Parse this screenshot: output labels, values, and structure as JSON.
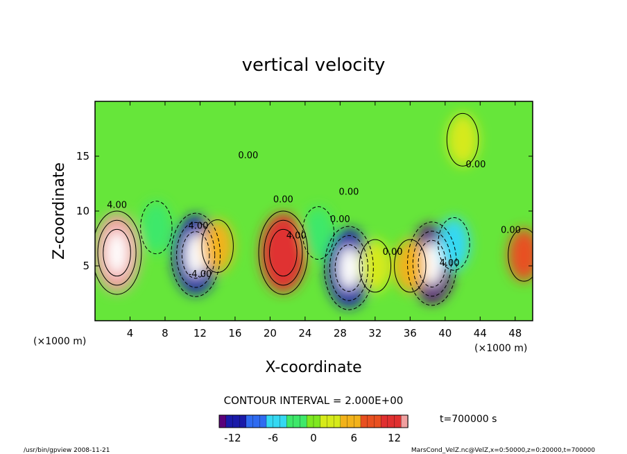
{
  "chart_data": {
    "type": "heatmap",
    "title": "vertical velocity",
    "xlabel": "X-coordinate",
    "ylabel": "Z-coordinate",
    "x_unit_note": "(×1000 m)",
    "y_unit_note": "(×1000 m)",
    "xlim": [
      0,
      50
    ],
    "ylim": [
      0,
      20
    ],
    "x_ticks": [
      4,
      8,
      12,
      16,
      20,
      24,
      28,
      32,
      36,
      40,
      44,
      48
    ],
    "y_ticks": [
      5,
      10,
      15
    ],
    "contour_interval_text": "CONTOUR INTERVAL = 2.000E+00",
    "contour_labels": [
      "4.00",
      "4.00",
      "4.00",
      "4.00",
      "0.00",
      "0.00",
      "0.00",
      "0.00",
      "0.00",
      "0.00",
      "0.00",
      "-4.00"
    ],
    "time_label": "t=700000 s",
    "colorbar": {
      "range": [
        -14,
        14
      ],
      "ticks": [
        -12,
        -6,
        0,
        6,
        12
      ],
      "colors": [
        "#5a007a",
        "#1a1aa8",
        "#2f6bf0",
        "#35d8f2",
        "#3ee86a",
        "#7ee820",
        "#d6ea1a",
        "#f2b21a",
        "#e85020",
        "#e03030",
        "#f0a0a0"
      ]
    },
    "cells": [
      {
        "x": 2.5,
        "z": 6.2,
        "value": 14
      },
      {
        "x": 11.5,
        "z": 6.0,
        "value": -12
      },
      {
        "x": 21.5,
        "z": 6.2,
        "value": 10
      },
      {
        "x": 29.0,
        "z": 4.8,
        "value": -12
      },
      {
        "x": 38.5,
        "z": 5.2,
        "value": -14
      },
      {
        "x": 49.0,
        "z": 6.0,
        "value": 8
      },
      {
        "x": 14.0,
        "z": 6.8,
        "value": 5
      },
      {
        "x": 32.0,
        "z": 5.0,
        "value": 4
      },
      {
        "x": 36.0,
        "z": 5.0,
        "value": 5
      },
      {
        "x": 42.0,
        "z": 16.5,
        "value": 3
      },
      {
        "x": 41.0,
        "z": 7.0,
        "value": -6
      },
      {
        "x": 7.0,
        "z": 8.5,
        "value": -4
      },
      {
        "x": 25.5,
        "z": 8.0,
        "value": -4
      }
    ]
  },
  "footer": {
    "left": "/usr/bin/gpview  2008-11-21",
    "right": "MarsCond_VelZ.nc@VelZ,x=0:50000,z=0:20000,t=700000"
  }
}
